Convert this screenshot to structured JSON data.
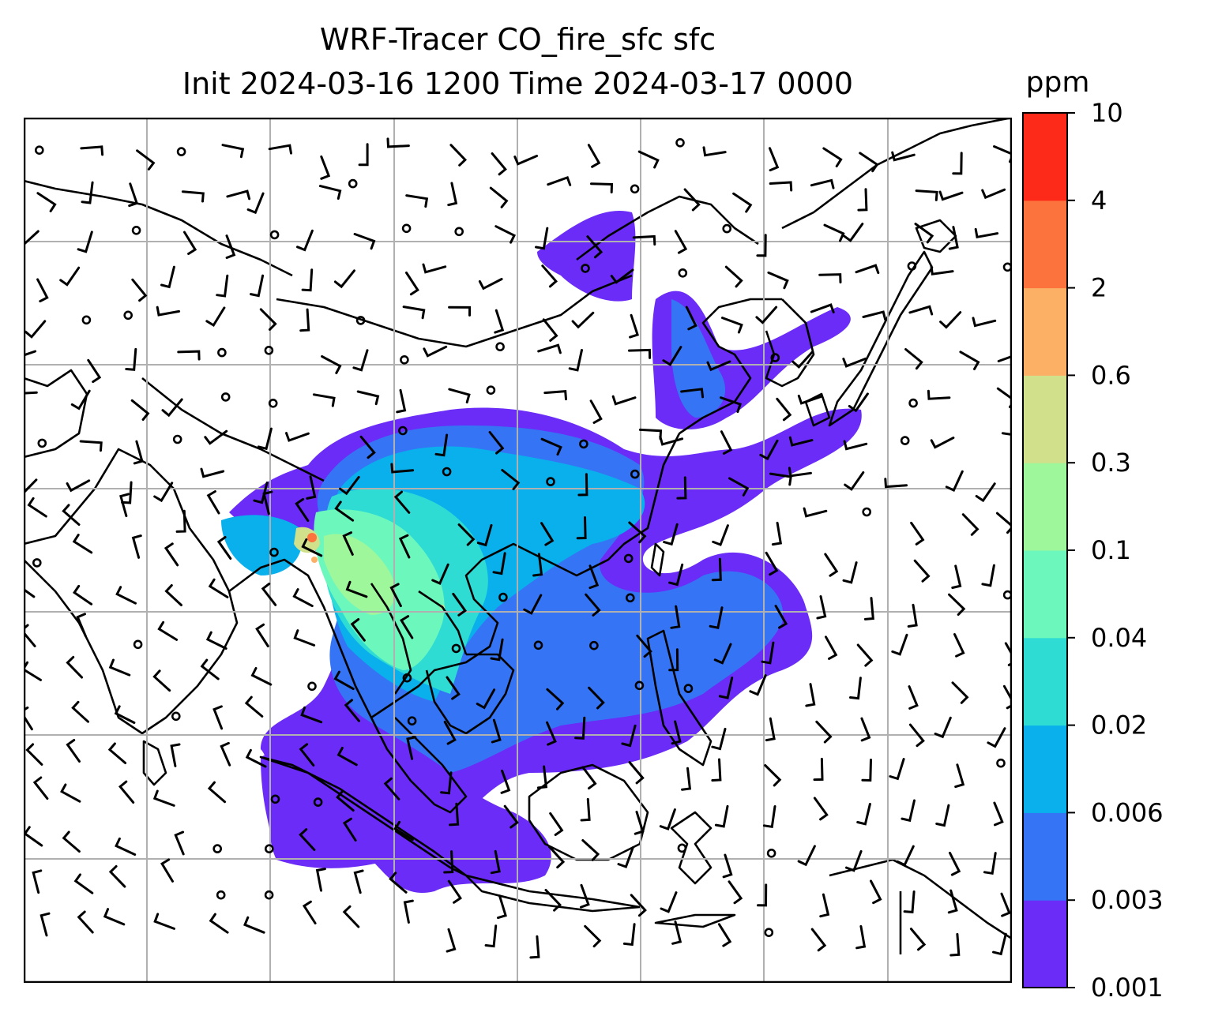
{
  "title": {
    "line1": "WRF-Tracer CO_fire_sfc sfc",
    "line2": "Init 2024-03-16 1200 Time 2024-03-17 0000"
  },
  "colorbar": {
    "unit": "ppm",
    "levels": [
      "0.001",
      "0.003",
      "0.006",
      "0.02",
      "0.04",
      "0.1",
      "0.3",
      "0.6",
      "2",
      "4",
      "10"
    ],
    "colors": [
      "#6a2cf6",
      "#3575f5",
      "#09b0ec",
      "#2fdcd4",
      "#6cf7bd",
      "#9ef79b",
      "#d1e08a",
      "#fcb066",
      "#fd733d",
      "#fe2a19"
    ]
  },
  "map": {
    "gridlines": true,
    "grid_color": "#b0b0b0",
    "coastline_color": "#000000",
    "wind_barbs": true
  }
}
